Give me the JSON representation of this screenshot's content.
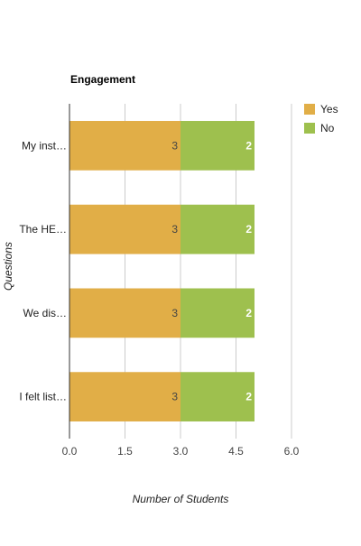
{
  "chart_data": {
    "type": "bar",
    "orientation": "horizontal",
    "stacked": true,
    "title": "Engagement",
    "xlabel": "Number of Students",
    "ylabel": "Questions",
    "categories": [
      "My inst…",
      "The HE…",
      "We dis…",
      "I felt list…"
    ],
    "series": [
      {
        "name": "Yes",
        "color": "#E1AE47",
        "values": [
          3,
          3,
          3,
          3
        ],
        "label_color": "#444444"
      },
      {
        "name": "No",
        "color": "#9EC04E",
        "values": [
          2,
          2,
          2,
          2
        ],
        "label_color": "#ffffff"
      }
    ],
    "xlim": [
      0,
      6
    ],
    "xticks": [
      "0.0",
      "1.5",
      "3.0",
      "4.5",
      "6.0"
    ],
    "grid": true,
    "legend": "right"
  }
}
